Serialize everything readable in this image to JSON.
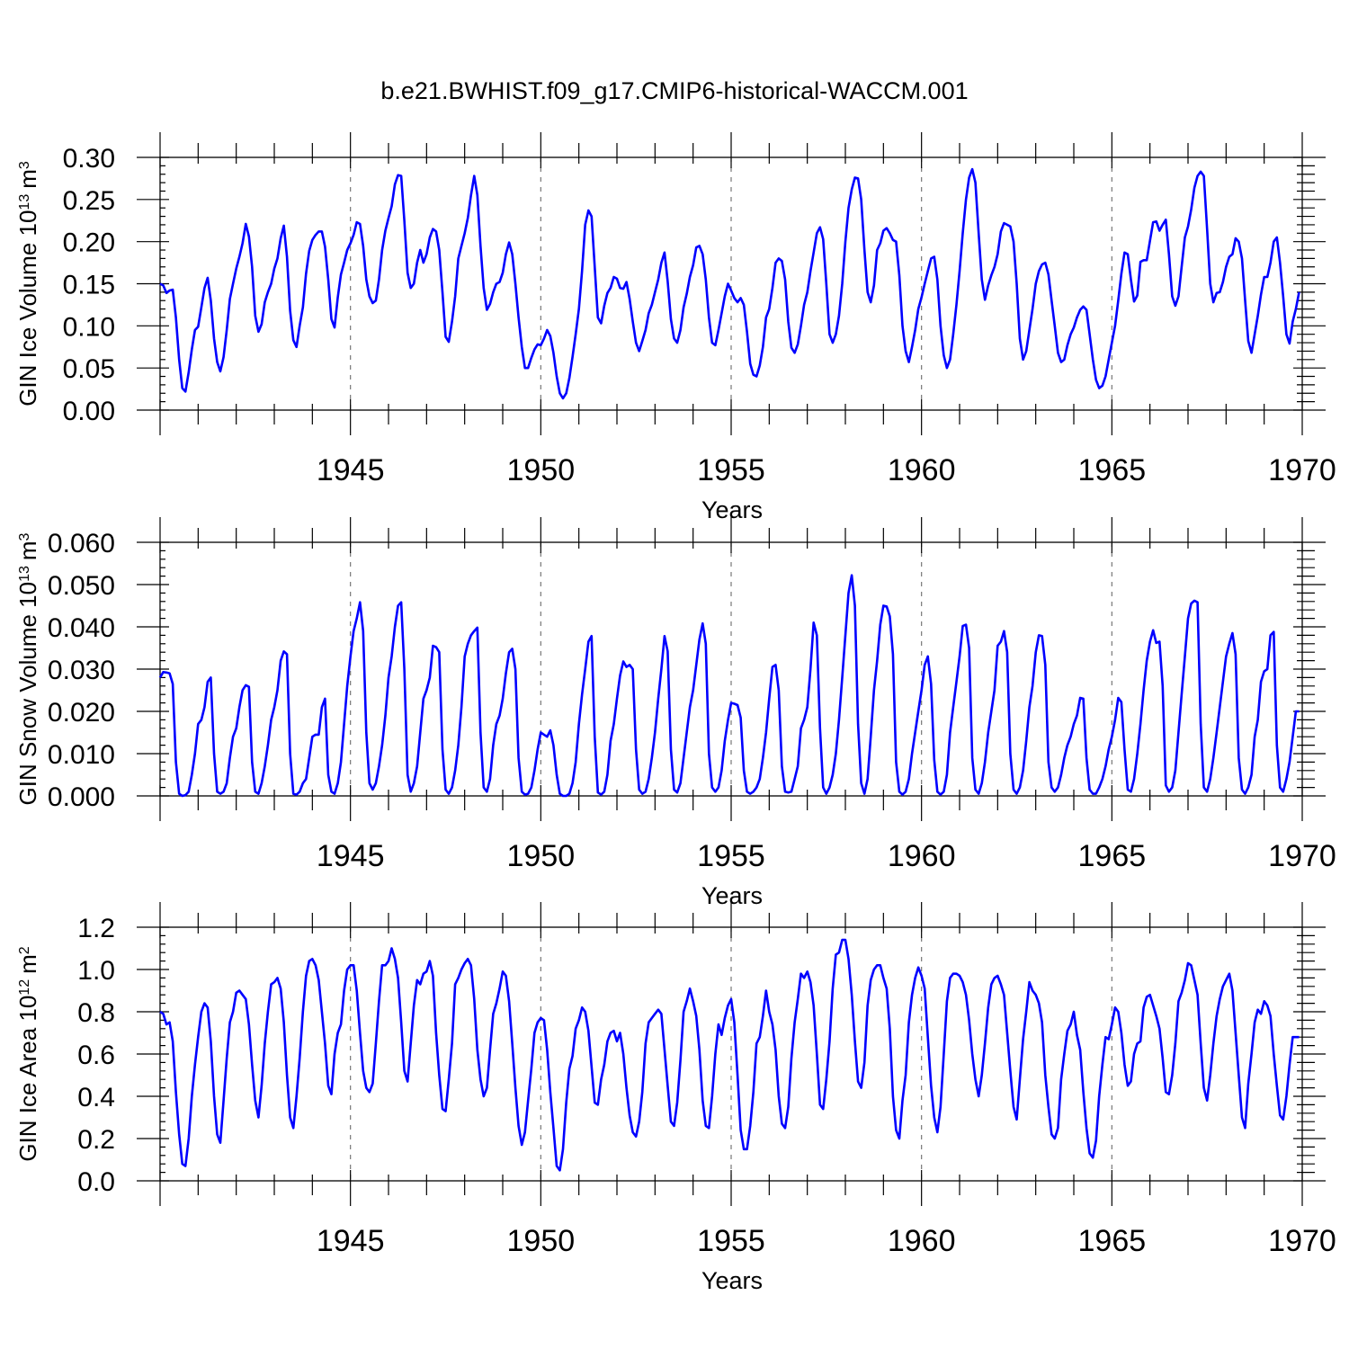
{
  "title": "b.e21.BWHIST.f09_g17.CMIP6-historical-WACCM.001",
  "colors": {
    "series": "#0000ff",
    "grid": "#777777",
    "axis": "#000000"
  },
  "chart_data": [
    {
      "type": "line",
      "ylabel": "GIN Ice Volume 10",
      "ylabel_sup": "13",
      "ylabel_unit": "m",
      "ylabel_unit_sup": "3",
      "xlabel": "Years",
      "xlim": [
        1940,
        1970
      ],
      "ylim": [
        0,
        0.3
      ],
      "yticks": [
        0.0,
        0.05,
        0.1,
        0.15,
        0.2,
        0.25,
        0.3
      ],
      "ytick_labels": [
        "0.00",
        "0.05",
        "0.10",
        "0.15",
        "0.20",
        "0.25",
        "0.30"
      ],
      "xticks": [
        1945,
        1950,
        1955,
        1960,
        1965,
        1970
      ],
      "xtick_labels": [
        "1945",
        "1950",
        "1955",
        "1960",
        "1965",
        "1970"
      ],
      "grid": "vertical dashed at labeled years",
      "monthly_values": [
        0.15,
        0.148,
        0.139,
        0.142,
        0.143,
        0.11,
        0.06,
        0.026,
        0.022,
        0.045,
        0.072,
        0.095,
        0.099,
        0.122,
        0.145,
        0.157,
        0.13,
        0.085,
        0.057,
        0.046,
        0.063,
        0.095,
        0.132,
        0.15,
        0.168,
        0.182,
        0.198,
        0.221,
        0.206,
        0.17,
        0.112,
        0.093,
        0.102,
        0.128,
        0.14,
        0.15,
        0.168,
        0.18,
        0.204,
        0.219,
        0.182,
        0.118,
        0.083,
        0.075,
        0.1,
        0.122,
        0.162,
        0.189,
        0.202,
        0.208,
        0.212,
        0.212,
        0.194,
        0.155,
        0.108,
        0.098,
        0.134,
        0.161,
        0.175,
        0.19,
        0.198,
        0.208,
        0.223,
        0.221,
        0.195,
        0.155,
        0.135,
        0.127,
        0.13,
        0.155,
        0.19,
        0.213,
        0.228,
        0.242,
        0.268,
        0.279,
        0.278,
        0.225,
        0.163,
        0.145,
        0.15,
        0.175,
        0.19,
        0.175,
        0.185,
        0.205,
        0.215,
        0.212,
        0.19,
        0.14,
        0.087,
        0.081,
        0.105,
        0.135,
        0.18,
        0.195,
        0.21,
        0.228,
        0.255,
        0.278,
        0.255,
        0.195,
        0.145,
        0.119,
        0.126,
        0.14,
        0.15,
        0.152,
        0.163,
        0.185,
        0.199,
        0.185,
        0.15,
        0.11,
        0.075,
        0.05,
        0.05,
        0.062,
        0.072,
        0.078,
        0.077,
        0.085,
        0.095,
        0.088,
        0.068,
        0.04,
        0.02,
        0.014,
        0.02,
        0.038,
        0.063,
        0.09,
        0.12,
        0.165,
        0.22,
        0.237,
        0.23,
        0.17,
        0.11,
        0.103,
        0.124,
        0.139,
        0.145,
        0.158,
        0.156,
        0.145,
        0.144,
        0.152,
        0.132,
        0.105,
        0.08,
        0.07,
        0.082,
        0.095,
        0.115,
        0.125,
        0.14,
        0.155,
        0.175,
        0.187,
        0.153,
        0.108,
        0.085,
        0.08,
        0.095,
        0.122,
        0.138,
        0.158,
        0.172,
        0.193,
        0.195,
        0.185,
        0.155,
        0.11,
        0.08,
        0.077,
        0.095,
        0.115,
        0.135,
        0.15,
        0.142,
        0.133,
        0.128,
        0.133,
        0.125,
        0.093,
        0.055,
        0.042,
        0.04,
        0.053,
        0.075,
        0.11,
        0.12,
        0.145,
        0.175,
        0.18,
        0.177,
        0.155,
        0.105,
        0.074,
        0.068,
        0.078,
        0.1,
        0.125,
        0.14,
        0.165,
        0.187,
        0.21,
        0.217,
        0.203,
        0.15,
        0.09,
        0.08,
        0.09,
        0.112,
        0.15,
        0.2,
        0.24,
        0.262,
        0.276,
        0.275,
        0.25,
        0.19,
        0.14,
        0.128,
        0.148,
        0.19,
        0.198,
        0.213,
        0.216,
        0.21,
        0.202,
        0.2,
        0.16,
        0.1,
        0.07,
        0.057,
        0.075,
        0.095,
        0.12,
        0.134,
        0.15,
        0.165,
        0.18,
        0.182,
        0.155,
        0.1,
        0.065,
        0.05,
        0.06,
        0.09,
        0.125,
        0.165,
        0.21,
        0.25,
        0.276,
        0.286,
        0.27,
        0.21,
        0.155,
        0.131,
        0.148,
        0.16,
        0.17,
        0.185,
        0.212,
        0.222,
        0.22,
        0.218,
        0.2,
        0.15,
        0.085,
        0.06,
        0.07,
        0.095,
        0.12,
        0.15,
        0.165,
        0.173,
        0.175,
        0.161,
        0.13,
        0.1,
        0.068,
        0.057,
        0.06,
        0.077,
        0.09,
        0.098,
        0.11,
        0.119,
        0.123,
        0.119,
        0.09,
        0.06,
        0.036,
        0.026,
        0.029,
        0.04,
        0.06,
        0.08,
        0.1,
        0.13,
        0.162,
        0.187,
        0.185,
        0.155,
        0.129,
        0.136,
        0.176,
        0.178,
        0.178,
        0.201,
        0.223,
        0.224,
        0.213,
        0.22,
        0.226,
        0.185,
        0.135,
        0.124,
        0.135,
        0.17,
        0.205,
        0.218,
        0.238,
        0.264,
        0.278,
        0.283,
        0.278,
        0.215,
        0.15,
        0.128,
        0.139,
        0.14,
        0.152,
        0.17,
        0.182,
        0.185,
        0.204,
        0.2,
        0.18,
        0.13,
        0.082,
        0.068,
        0.09,
        0.112,
        0.137,
        0.158,
        0.158,
        0.175,
        0.2,
        0.205,
        0.175,
        0.135,
        0.09,
        0.079,
        0.105,
        0.12,
        0.14
      ]
    },
    {
      "type": "line",
      "ylabel": "GIN Snow Volume 10",
      "ylabel_sup": "13",
      "ylabel_unit": "m",
      "ylabel_unit_sup": "3",
      "xlabel": "Years",
      "xlim": [
        1940,
        1970
      ],
      "ylim": [
        0,
        0.06
      ],
      "yticks": [
        0.0,
        0.01,
        0.02,
        0.03,
        0.04,
        0.05,
        0.06
      ],
      "ytick_labels": [
        "0.000",
        "0.010",
        "0.020",
        "0.030",
        "0.040",
        "0.050",
        "0.060"
      ],
      "xticks": [
        1945,
        1950,
        1955,
        1960,
        1965,
        1970
      ],
      "xtick_labels": [
        "1945",
        "1950",
        "1955",
        "1960",
        "1965",
        "1970"
      ],
      "grid": "vertical dashed at labeled years",
      "monthly_values": [
        0.028,
        0.0293,
        0.0292,
        0.029,
        0.0265,
        0.008,
        0.0005,
        0.0,
        0.0002,
        0.001,
        0.005,
        0.01,
        0.017,
        0.018,
        0.021,
        0.027,
        0.028,
        0.01,
        0.001,
        0.0005,
        0.001,
        0.003,
        0.009,
        0.014,
        0.016,
        0.021,
        0.025,
        0.0262,
        0.0258,
        0.008,
        0.001,
        0.0005,
        0.003,
        0.007,
        0.012,
        0.018,
        0.021,
        0.025,
        0.032,
        0.0342,
        0.0335,
        0.01,
        0.0005,
        0.0003,
        0.001,
        0.003,
        0.004,
        0.009,
        0.014,
        0.0145,
        0.0145,
        0.021,
        0.023,
        0.005,
        0.001,
        0.0005,
        0.003,
        0.008,
        0.017,
        0.026,
        0.033,
        0.039,
        0.042,
        0.0458,
        0.039,
        0.015,
        0.003,
        0.0015,
        0.003,
        0.007,
        0.012,
        0.019,
        0.028,
        0.033,
        0.04,
        0.045,
        0.0458,
        0.03,
        0.005,
        0.001,
        0.003,
        0.007,
        0.015,
        0.023,
        0.025,
        0.028,
        0.0355,
        0.0352,
        0.034,
        0.011,
        0.0015,
        0.0005,
        0.002,
        0.006,
        0.012,
        0.021,
        0.033,
        0.036,
        0.038,
        0.039,
        0.0398,
        0.015,
        0.002,
        0.001,
        0.004,
        0.012,
        0.017,
        0.019,
        0.023,
        0.029,
        0.034,
        0.0348,
        0.03,
        0.009,
        0.001,
        0.0003,
        0.0005,
        0.002,
        0.006,
        0.011,
        0.015,
        0.0145,
        0.014,
        0.0155,
        0.012,
        0.005,
        0.0005,
        0.0,
        0.0,
        0.0005,
        0.003,
        0.008,
        0.017,
        0.024,
        0.03,
        0.0365,
        0.0378,
        0.014,
        0.0008,
        0.0003,
        0.001,
        0.005,
        0.013,
        0.017,
        0.023,
        0.0285,
        0.0318,
        0.0305,
        0.031,
        0.03,
        0.011,
        0.0015,
        0.0005,
        0.001,
        0.004,
        0.009,
        0.015,
        0.023,
        0.03,
        0.0378,
        0.0342,
        0.011,
        0.0015,
        0.0008,
        0.003,
        0.009,
        0.015,
        0.021,
        0.025,
        0.031,
        0.037,
        0.0408,
        0.036,
        0.01,
        0.002,
        0.001,
        0.002,
        0.006,
        0.013,
        0.018,
        0.022,
        0.0218,
        0.0215,
        0.0185,
        0.006,
        0.001,
        0.0005,
        0.001,
        0.002,
        0.004,
        0.009,
        0.015,
        0.023,
        0.0305,
        0.031,
        0.025,
        0.007,
        0.001,
        0.0008,
        0.001,
        0.004,
        0.007,
        0.016,
        0.018,
        0.021,
        0.03,
        0.041,
        0.038,
        0.016,
        0.002,
        0.0005,
        0.002,
        0.005,
        0.01,
        0.018,
        0.028,
        0.038,
        0.048,
        0.0522,
        0.045,
        0.017,
        0.003,
        0.0005,
        0.004,
        0.014,
        0.025,
        0.032,
        0.0405,
        0.045,
        0.0448,
        0.0425,
        0.0335,
        0.008,
        0.001,
        0.0003,
        0.001,
        0.004,
        0.01,
        0.015,
        0.02,
        0.025,
        0.031,
        0.033,
        0.0265,
        0.0085,
        0.001,
        0.0003,
        0.001,
        0.005,
        0.015,
        0.021,
        0.027,
        0.033,
        0.0402,
        0.0405,
        0.035,
        0.009,
        0.0015,
        0.0005,
        0.003,
        0.008,
        0.015,
        0.02,
        0.025,
        0.0355,
        0.0365,
        0.039,
        0.034,
        0.01,
        0.0015,
        0.0005,
        0.002,
        0.006,
        0.013,
        0.021,
        0.026,
        0.034,
        0.038,
        0.0378,
        0.031,
        0.008,
        0.002,
        0.001,
        0.002,
        0.005,
        0.009,
        0.012,
        0.014,
        0.017,
        0.019,
        0.0232,
        0.023,
        0.009,
        0.0015,
        0.0005,
        0.0005,
        0.002,
        0.004,
        0.007,
        0.011,
        0.014,
        0.018,
        0.0232,
        0.0222,
        0.011,
        0.0015,
        0.001,
        0.004,
        0.01,
        0.017,
        0.025,
        0.032,
        0.0365,
        0.0392,
        0.0362,
        0.0365,
        0.026,
        0.0025,
        0.001,
        0.002,
        0.006,
        0.015,
        0.024,
        0.033,
        0.042,
        0.0455,
        0.0462,
        0.0458,
        0.017,
        0.002,
        0.001,
        0.004,
        0.009,
        0.015,
        0.021,
        0.027,
        0.033,
        0.036,
        0.0385,
        0.0335,
        0.009,
        0.0015,
        0.0005,
        0.002,
        0.005,
        0.014,
        0.018,
        0.027,
        0.0295,
        0.03,
        0.038,
        0.0388,
        0.012,
        0.002,
        0.001,
        0.004,
        0.008,
        0.014,
        0.02,
        0.02
      ]
    },
    {
      "type": "line",
      "ylabel": "GIN Ice Area 10",
      "ylabel_sup": "12",
      "ylabel_unit": "m",
      "ylabel_unit_sup": "2",
      "xlabel": "Years",
      "xlim": [
        1940,
        1970
      ],
      "ylim": [
        0,
        1.2
      ],
      "yticks": [
        0.0,
        0.2,
        0.4,
        0.6,
        0.8,
        1.0,
        1.2
      ],
      "ytick_labels": [
        "0.0",
        "0.2",
        "0.4",
        "0.6",
        "0.8",
        "1.0",
        "1.2"
      ],
      "xticks": [
        1945,
        1950,
        1955,
        1960,
        1965,
        1970
      ],
      "xtick_labels": [
        "1945",
        "1950",
        "1955",
        "1960",
        "1965",
        "1970"
      ],
      "grid": "vertical dashed at labeled years",
      "monthly_values": [
        0.8,
        0.79,
        0.74,
        0.75,
        0.66,
        0.42,
        0.22,
        0.08,
        0.07,
        0.2,
        0.4,
        0.55,
        0.68,
        0.8,
        0.84,
        0.82,
        0.66,
        0.4,
        0.22,
        0.18,
        0.38,
        0.58,
        0.75,
        0.8,
        0.89,
        0.9,
        0.88,
        0.86,
        0.74,
        0.55,
        0.38,
        0.3,
        0.45,
        0.65,
        0.8,
        0.93,
        0.94,
        0.96,
        0.91,
        0.75,
        0.5,
        0.3,
        0.25,
        0.4,
        0.58,
        0.8,
        0.97,
        1.04,
        1.05,
        1.02,
        0.95,
        0.8,
        0.65,
        0.45,
        0.41,
        0.6,
        0.7,
        0.74,
        0.9,
        1.0,
        1.02,
        1.02,
        0.9,
        0.7,
        0.52,
        0.44,
        0.42,
        0.46,
        0.65,
        0.85,
        1.02,
        1.02,
        1.04,
        1.1,
        1.05,
        0.96,
        0.75,
        0.52,
        0.47,
        0.65,
        0.83,
        0.95,
        0.93,
        0.98,
        0.99,
        1.04,
        0.97,
        0.7,
        0.5,
        0.34,
        0.33,
        0.48,
        0.65,
        0.93,
        0.96,
        1.0,
        1.03,
        1.05,
        1.02,
        0.86,
        0.62,
        0.48,
        0.4,
        0.44,
        0.62,
        0.79,
        0.84,
        0.91,
        0.99,
        0.97,
        0.85,
        0.65,
        0.44,
        0.26,
        0.17,
        0.23,
        0.38,
        0.53,
        0.7,
        0.75,
        0.77,
        0.76,
        0.62,
        0.42,
        0.25,
        0.07,
        0.05,
        0.15,
        0.37,
        0.53,
        0.59,
        0.72,
        0.76,
        0.82,
        0.8,
        0.71,
        0.54,
        0.37,
        0.36,
        0.48,
        0.55,
        0.66,
        0.7,
        0.71,
        0.66,
        0.7,
        0.6,
        0.44,
        0.31,
        0.23,
        0.21,
        0.28,
        0.42,
        0.65,
        0.75,
        0.77,
        0.79,
        0.81,
        0.79,
        0.62,
        0.45,
        0.28,
        0.26,
        0.37,
        0.57,
        0.8,
        0.85,
        0.91,
        0.85,
        0.78,
        0.62,
        0.38,
        0.26,
        0.25,
        0.4,
        0.6,
        0.74,
        0.69,
        0.77,
        0.83,
        0.86,
        0.75,
        0.5,
        0.24,
        0.15,
        0.15,
        0.26,
        0.42,
        0.65,
        0.68,
        0.78,
        0.9,
        0.8,
        0.74,
        0.62,
        0.4,
        0.27,
        0.25,
        0.35,
        0.58,
        0.75,
        0.86,
        0.98,
        0.96,
        0.99,
        0.94,
        0.83,
        0.6,
        0.36,
        0.34,
        0.48,
        0.66,
        0.91,
        1.07,
        1.08,
        1.14,
        1.14,
        1.05,
        0.88,
        0.66,
        0.47,
        0.44,
        0.56,
        0.83,
        0.95,
        1.0,
        1.02,
        1.02,
        0.96,
        0.91,
        0.72,
        0.4,
        0.24,
        0.2,
        0.38,
        0.5,
        0.75,
        0.88,
        0.96,
        1.01,
        0.97,
        0.91,
        0.68,
        0.45,
        0.3,
        0.23,
        0.35,
        0.6,
        0.85,
        0.96,
        0.98,
        0.98,
        0.97,
        0.94,
        0.88,
        0.76,
        0.6,
        0.48,
        0.4,
        0.5,
        0.65,
        0.82,
        0.93,
        0.96,
        0.97,
        0.93,
        0.88,
        0.7,
        0.52,
        0.35,
        0.29,
        0.48,
        0.67,
        0.8,
        0.94,
        0.9,
        0.88,
        0.84,
        0.75,
        0.5,
        0.35,
        0.22,
        0.2,
        0.25,
        0.48,
        0.6,
        0.71,
        0.74,
        0.8,
        0.69,
        0.62,
        0.42,
        0.25,
        0.13,
        0.11,
        0.19,
        0.4,
        0.55,
        0.68,
        0.67,
        0.74,
        0.82,
        0.8,
        0.7,
        0.55,
        0.45,
        0.47,
        0.6,
        0.65,
        0.66,
        0.82,
        0.87,
        0.88,
        0.83,
        0.78,
        0.72,
        0.58,
        0.42,
        0.41,
        0.5,
        0.65,
        0.85,
        0.89,
        0.95,
        1.03,
        1.02,
        0.95,
        0.88,
        0.65,
        0.44,
        0.38,
        0.5,
        0.65,
        0.78,
        0.86,
        0.92,
        0.95,
        0.98,
        0.9,
        0.7,
        0.5,
        0.3,
        0.25,
        0.46,
        0.6,
        0.75,
        0.81,
        0.79,
        0.85,
        0.83,
        0.78,
        0.6,
        0.45,
        0.31,
        0.29,
        0.4,
        0.55,
        0.68,
        0.68,
        0.68
      ]
    }
  ]
}
